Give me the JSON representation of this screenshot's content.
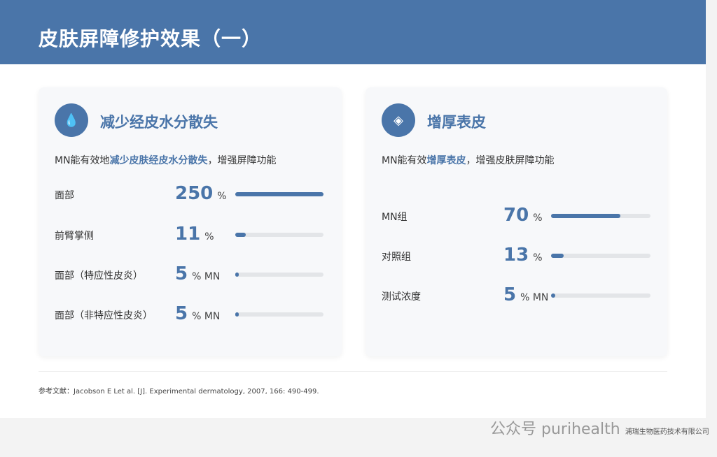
{
  "title": "皮肤屏障修护效果（一）",
  "cards": [
    {
      "title": "减少经皮水分散失",
      "icon": "water-drop-icon",
      "desc_pre": "MN能有效地",
      "desc_hl": "减少皮肤经皮水分散失",
      "desc_post": "，增强屏障功能",
      "rows": [
        {
          "label": "面部",
          "value": "250",
          "unit": "%",
          "fill": 1.0
        },
        {
          "label": "前臂掌侧",
          "value": "11",
          "unit": "%",
          "fill": 0.12
        },
        {
          "label": "面部（特应性皮炎）",
          "value": "5",
          "unit": "% MN",
          "fill": 0.03
        },
        {
          "label": "面部（非特应性皮炎）",
          "value": "5",
          "unit": "% MN",
          "fill": 0.03
        }
      ]
    },
    {
      "title": "增厚表皮",
      "icon": "layers-icon",
      "desc_pre": "MN能有效",
      "desc_hl": "增厚表皮",
      "desc_post": "，增强皮肤屏障功能",
      "rows": [
        {
          "label": "MN组",
          "value": "70",
          "unit": "%",
          "fill": 0.7
        },
        {
          "label": "对照组",
          "value": "13",
          "unit": "%",
          "fill": 0.13
        },
        {
          "label": "测试浓度",
          "value": "5",
          "unit": "% MN",
          "fill": 0.03
        }
      ]
    }
  ],
  "reference": "参考文献：Jacobson E Let al. [J]. Experimental dermatology, 2007, 166: 490-499.",
  "watermark": {
    "prefix": "公众号",
    "name": "purihealth",
    "company": "浦瑞生物医药技术有限公司"
  },
  "colors": {
    "accent": "#4a75a9"
  }
}
